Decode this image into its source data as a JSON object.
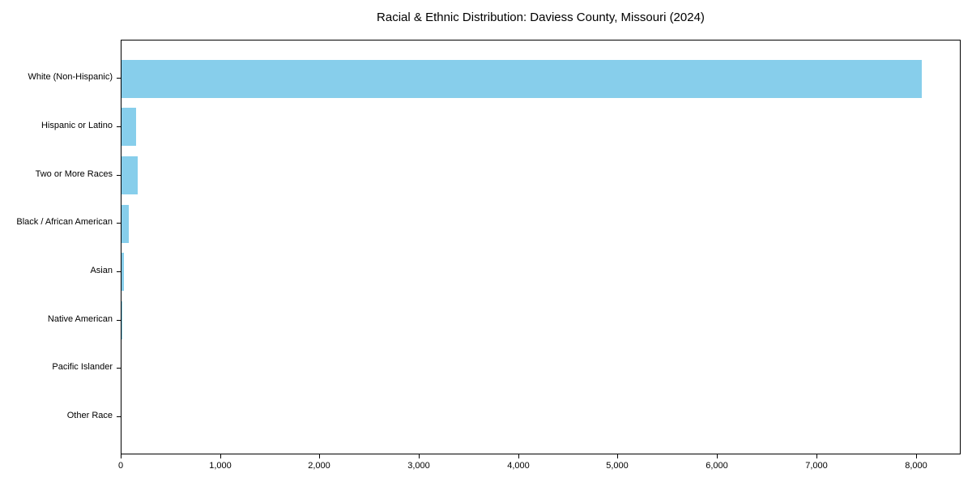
{
  "chart_data": {
    "type": "bar",
    "orientation": "horizontal",
    "title": "Racial & Ethnic Distribution: Daviess County, Missouri (2024)",
    "categories": [
      "White (Non-Hispanic)",
      "Hispanic or Latino",
      "Two or More Races",
      "Black / African American",
      "Asian",
      "Native American",
      "Pacific Islander",
      "Other Race"
    ],
    "values": [
      8050,
      150,
      160,
      70,
      25,
      10,
      0,
      0
    ],
    "xlabel": "",
    "ylabel": "",
    "xlim": [
      0,
      8452
    ],
    "xticks": [
      0,
      1000,
      2000,
      3000,
      4000,
      5000,
      6000,
      7000,
      8000
    ],
    "xtick_labels": [
      "0",
      "1,000",
      "2,000",
      "3,000",
      "4,000",
      "5,000",
      "6,000",
      "7,000",
      "8,000"
    ],
    "grid": "off",
    "legend": "none",
    "bar_color": "#87CEEB",
    "axis_color": "#000000",
    "text_color": "#000000"
  }
}
